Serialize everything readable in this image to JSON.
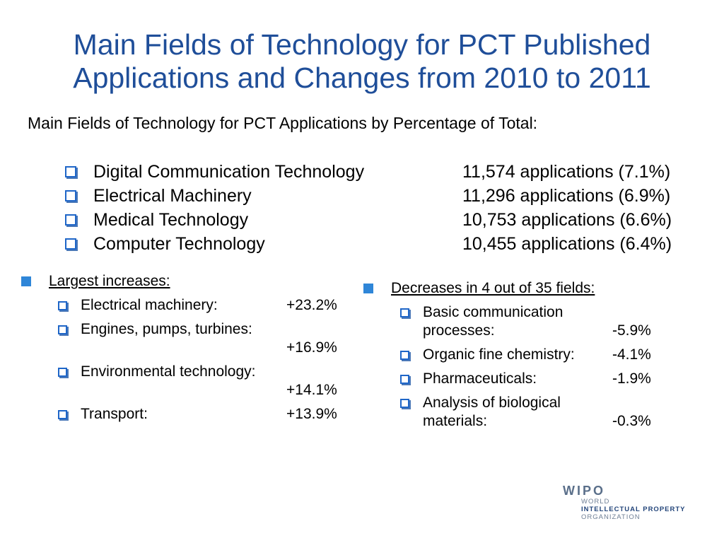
{
  "title_line1": "Main Fields of Technology for PCT Published",
  "title_line2": "Applications and Changes from 2010 to 2011",
  "subtitle": "Main Fields of Technology for PCT Applications by Percentage of Total:",
  "top_fields": [
    {
      "name": "Digital Communication Technology",
      "count": "11,574 applications (7.1%)"
    },
    {
      "name": "Electrical Machinery",
      "count": "11,296 applications (6.9%)"
    },
    {
      "name": "Medical Technology",
      "count": "10,753 applications (6.6%)"
    },
    {
      "name": "Computer Technology",
      "count": "10,455 applications (6.4%)"
    }
  ],
  "increases": {
    "heading": "Largest increases:",
    "items": [
      {
        "label": "Electrical machinery:",
        "value": "+23.2%"
      },
      {
        "label": "Engines, pumps, turbines:",
        "value": "+16.9%"
      },
      {
        "label": "Environmental technology:",
        "value": "+14.1%"
      },
      {
        "label": "Transport:",
        "value": "+13.9%"
      }
    ]
  },
  "decreases": {
    "heading": "Decreases in 4 out of 35 fields:",
    "items": [
      {
        "label1": "Basic communication",
        "label2": "processes:",
        "value": "-5.9%"
      },
      {
        "label1": "Organic fine chemistry:",
        "value": "-4.1%"
      },
      {
        "label1": "Pharmaceuticals:",
        "value": "-1.9%"
      },
      {
        "label1": "Analysis of biological",
        "label2": "materials:",
        "value": "-0.3%"
      }
    ]
  },
  "logo": {
    "mark": "WIPO",
    "line1": "WORLD",
    "line2": "INTELLECTUAL PROPERTY",
    "line3": "ORGANIZATION"
  },
  "colors": {
    "title": "#1f4e99",
    "bullet": "#2f86d8"
  }
}
